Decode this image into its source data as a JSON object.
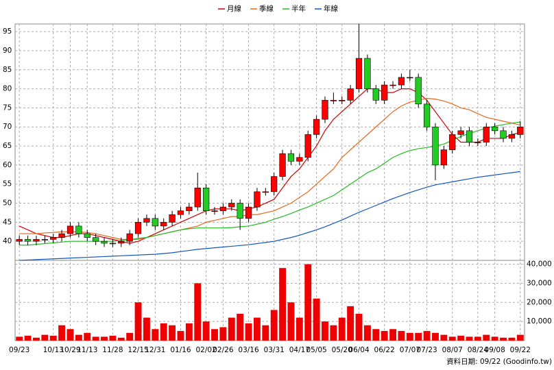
{
  "chart_data": {
    "type": "candlestick",
    "grid": true,
    "ylim": [
      35,
      97
    ],
    "yticks": [
      40,
      45,
      50,
      55,
      60,
      65,
      70,
      75,
      80,
      85,
      90,
      95
    ],
    "up_color": "#ff0000",
    "down_color": "#22cc22",
    "categories": [
      "09/23",
      null,
      null,
      null,
      "10/13",
      null,
      "10/29",
      null,
      "11/13",
      null,
      null,
      "11/28",
      null,
      null,
      "12/15",
      null,
      "12/31",
      null,
      null,
      "01/16",
      null,
      null,
      "02/02",
      null,
      "02/26",
      null,
      null,
      "03/16",
      null,
      null,
      "03/31",
      null,
      null,
      "04/17",
      null,
      "05/05",
      null,
      null,
      "05/20",
      null,
      "06/04",
      null,
      null,
      "06/22",
      null,
      null,
      "07/07",
      null,
      "07/23",
      null,
      null,
      "08/07",
      null,
      null,
      "08/24",
      null,
      "09/08",
      null,
      null,
      "09/22"
    ],
    "open": [
      40,
      40.5,
      40,
      40.5,
      40.5,
      41,
      42,
      44,
      42,
      41,
      40,
      39.5,
      39.5,
      40,
      42,
      45,
      46,
      44,
      45,
      47,
      48,
      49,
      54,
      48,
      48,
      49,
      50,
      46,
      49,
      53,
      53,
      57,
      63,
      61,
      62,
      68,
      72,
      77,
      77,
      77,
      80,
      88,
      80,
      77,
      81,
      81,
      83,
      83,
      76,
      70,
      60,
      64,
      68,
      69,
      66,
      66,
      70,
      69,
      67,
      68
    ],
    "high": [
      41.5,
      41.5,
      41.5,
      41.5,
      42,
      43,
      45,
      45,
      43,
      42,
      41,
      40.5,
      41,
      43,
      46,
      47,
      47,
      46,
      48,
      49,
      50,
      58,
      55,
      49,
      50,
      51,
      51,
      50,
      54,
      54,
      58,
      64,
      64,
      63,
      69,
      73,
      78,
      79,
      78,
      81,
      97,
      89,
      81,
      82,
      82,
      84,
      85,
      84,
      77,
      71,
      65,
      69,
      70,
      70,
      67,
      71,
      71,
      70,
      69,
      71.5
    ],
    "low": [
      39,
      39,
      39,
      39.5,
      39.5,
      40,
      41,
      41,
      40,
      39,
      38.5,
      38.5,
      38.5,
      39,
      41,
      44,
      43,
      43,
      44,
      46,
      47,
      48,
      47,
      47,
      47,
      48,
      43,
      45,
      48,
      52,
      52,
      56,
      60,
      60,
      61,
      67,
      71,
      76,
      76,
      76,
      79,
      79,
      76,
      76,
      80,
      80,
      82,
      75,
      69,
      56,
      59,
      63,
      67,
      65,
      65,
      65,
      68,
      66,
      66,
      67
    ],
    "close": [
      40.5,
      40,
      40.5,
      40.5,
      41,
      42,
      44,
      42,
      41,
      40,
      39.5,
      39.5,
      40,
      42,
      45,
      46,
      44,
      45,
      47,
      48,
      49,
      54,
      48,
      48,
      49,
      50,
      46,
      49,
      53,
      53,
      57,
      63,
      61,
      62,
      68,
      72,
      77,
      77,
      77,
      80,
      88,
      80,
      77,
      81,
      81,
      83,
      83,
      76,
      70,
      60,
      64,
      68,
      69,
      66,
      66,
      70,
      69,
      67,
      68,
      70
    ],
    "series": [
      {
        "name": "月線",
        "color": "#cc0000",
        "values": [
          44,
          43,
          42,
          41.5,
          41,
          41,
          41.5,
          42,
          42,
          41.5,
          41,
          40.5,
          40,
          39.5,
          40,
          41,
          42,
          43,
          44,
          45,
          46,
          47,
          48,
          48.5,
          48.5,
          48.5,
          48,
          48.5,
          49,
          50,
          51,
          54,
          57,
          59,
          62,
          65,
          69,
          72,
          74,
          76,
          78,
          80,
          80,
          79,
          79,
          80,
          80,
          79,
          77,
          74,
          71,
          68,
          66,
          66,
          66,
          67,
          67,
          67,
          68,
          68.5
        ]
      },
      {
        "name": "季線",
        "color": "#e8661a",
        "values": [
          42,
          42,
          42,
          42.2,
          42.3,
          42.5,
          42.5,
          42.5,
          42.3,
          42,
          41.5,
          41,
          40.5,
          40.5,
          40.5,
          41,
          41.5,
          42,
          42.5,
          43,
          43.5,
          44,
          45,
          45.5,
          46,
          46.5,
          46.5,
          47,
          47,
          47.5,
          48,
          49,
          50,
          51.5,
          53,
          55,
          57,
          59,
          62,
          64,
          66,
          68,
          70,
          72,
          74,
          75.5,
          76.5,
          77,
          77.5,
          77.3,
          76.8,
          76,
          75,
          74.5,
          73.5,
          72.5,
          72,
          71.5,
          71,
          70.5
        ]
      },
      {
        "name": "半年",
        "color": "#22bb22",
        "values": [
          39,
          39,
          39.2,
          39.4,
          39.6,
          39.8,
          40,
          40,
          40,
          40,
          40,
          40,
          40.2,
          40.4,
          40.8,
          41,
          41.5,
          42,
          42.5,
          43,
          43.3,
          43.5,
          43.5,
          43.5,
          43.5,
          43.6,
          43.8,
          44,
          44.5,
          45,
          45.8,
          46.5,
          47.3,
          48.2,
          49,
          50,
          51,
          52,
          53.5,
          55,
          56.5,
          58,
          59,
          60.5,
          62,
          63,
          63.8,
          64.3,
          64.6,
          65,
          65.5,
          66.5,
          67.5,
          68.3,
          69,
          69.7,
          70.2,
          70.6,
          71,
          71.3
        ]
      },
      {
        "name": "年線",
        "color": "#1155bb",
        "values": [
          35,
          35.1,
          35.2,
          35.3,
          35.4,
          35.5,
          35.6,
          35.7,
          35.8,
          35.9,
          36,
          36.1,
          36.2,
          36.3,
          36.4,
          36.5,
          36.6,
          36.8,
          37,
          37.3,
          37.6,
          37.9,
          38.1,
          38.3,
          38.5,
          38.7,
          38.9,
          39.1,
          39.4,
          39.7,
          40,
          40.5,
          41,
          41.6,
          42.3,
          43,
          43.8,
          44.7,
          45.6,
          46.6,
          47.6,
          48.5,
          49.4,
          50.3,
          51.2,
          52,
          52.8,
          53.5,
          54.2,
          54.8,
          55.2,
          55.6,
          56,
          56.4,
          56.8,
          57.1,
          57.4,
          57.7,
          58,
          58.3
        ]
      }
    ],
    "volume": {
      "color": "#ee0000",
      "ylim": [
        0,
        42000
      ],
      "yticks": [
        {
          "value": 10000,
          "label": "10,000"
        },
        {
          "value": 20000,
          "label": "20,000"
        },
        {
          "value": 30000,
          "label": "30,000"
        },
        {
          "value": 40000,
          "label": "40,000"
        }
      ],
      "values": [
        2000,
        2500,
        1500,
        3000,
        2500,
        8000,
        6000,
        3000,
        4000,
        2000,
        2000,
        2500,
        1500,
        4000,
        20000,
        12000,
        6000,
        9000,
        8000,
        5000,
        9000,
        30000,
        10000,
        6000,
        7000,
        12000,
        14000,
        9000,
        12000,
        8000,
        16000,
        38000,
        20000,
        12000,
        40000,
        22000,
        10000,
        8000,
        12000,
        18000,
        14000,
        8000,
        6000,
        5000,
        6000,
        5000,
        4000,
        4000,
        5000,
        4000,
        3000,
        2000,
        2500,
        2000,
        2000,
        3000,
        2000,
        1500,
        1500,
        3000
      ]
    },
    "source": "資料日期: 09/22 (Goodinfo.tw)"
  }
}
